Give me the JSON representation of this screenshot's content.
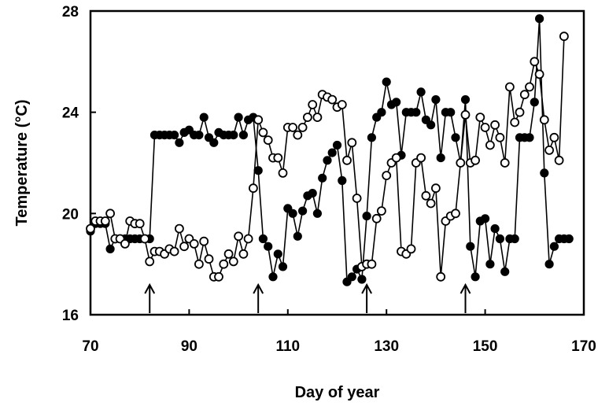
{
  "chart_data": {
    "type": "line",
    "title": "",
    "xlabel": "Day of year",
    "ylabel": "Temperature (°C)",
    "xlim": [
      70,
      170
    ],
    "ylim": [
      16,
      28
    ],
    "x_ticks": [
      70,
      90,
      110,
      130,
      150,
      170
    ],
    "y_ticks": [
      16,
      20,
      24,
      28
    ],
    "grid": false,
    "legend": "none",
    "arrows_at_x": [
      82,
      104,
      126,
      146
    ],
    "series": [
      {
        "marker": "filled",
        "color": "#000000",
        "x": [
          70,
          71,
          72,
          73,
          74,
          75,
          76,
          77,
          78,
          79,
          80,
          81,
          82,
          83,
          84,
          85,
          86,
          87,
          88,
          89,
          90,
          91,
          92,
          93,
          94,
          95,
          96,
          97,
          98,
          99,
          100,
          101,
          102,
          103,
          104,
          105,
          106,
          107,
          108,
          109,
          110,
          111,
          112,
          113,
          114,
          115,
          116,
          117,
          118,
          119,
          120,
          121,
          122,
          123,
          124,
          125,
          126,
          127,
          128,
          129,
          130,
          131,
          132,
          133,
          134,
          135,
          136,
          137,
          138,
          139,
          140,
          141,
          142,
          143,
          144,
          145,
          146,
          147,
          148,
          149,
          150,
          151,
          152,
          153,
          154,
          155,
          156,
          157,
          158,
          159,
          160,
          161,
          162,
          163,
          164,
          165,
          166,
          167
        ],
        "y": [
          19.3,
          19.6,
          19.6,
          19.6,
          18.6,
          19.0,
          19.0,
          19.0,
          19.0,
          19.0,
          19.0,
          19.0,
          19.0,
          23.1,
          23.1,
          23.1,
          23.1,
          23.1,
          22.8,
          23.2,
          23.3,
          23.1,
          23.1,
          23.8,
          23.0,
          22.8,
          23.2,
          23.1,
          23.1,
          23.1,
          23.8,
          23.1,
          23.7,
          23.8,
          21.7,
          19.0,
          18.7,
          17.5,
          18.4,
          17.9,
          20.2,
          20.0,
          19.1,
          20.1,
          20.7,
          20.8,
          20.0,
          21.4,
          22.1,
          22.4,
          22.7,
          21.3,
          17.3,
          17.5,
          17.8,
          17.4,
          19.9,
          23.0,
          23.8,
          24.0,
          25.2,
          24.3,
          24.4,
          22.3,
          24.0,
          24.0,
          24.0,
          24.8,
          23.7,
          23.5,
          24.5,
          22.2,
          24.0,
          24.0,
          23.0,
          22.0,
          24.5,
          18.7,
          17.5,
          19.7,
          19.8,
          18.0,
          19.4,
          19.0,
          17.7,
          19.0,
          19.0,
          23.0,
          23.0,
          23.0,
          24.4,
          27.7,
          21.6,
          18.0,
          18.7,
          19.0,
          19.0,
          19.0
        ]
      },
      {
        "marker": "open",
        "color": "#000000",
        "x": [
          70,
          71,
          72,
          73,
          74,
          75,
          76,
          77,
          78,
          79,
          80,
          81,
          82,
          83,
          84,
          85,
          86,
          87,
          88,
          89,
          90,
          91,
          92,
          93,
          94,
          95,
          96,
          97,
          98,
          99,
          100,
          101,
          102,
          103,
          104,
          105,
          106,
          107,
          108,
          109,
          110,
          111,
          112,
          113,
          114,
          115,
          116,
          117,
          118,
          119,
          120,
          121,
          122,
          123,
          124,
          125,
          126,
          127,
          128,
          129,
          130,
          131,
          132,
          133,
          134,
          135,
          136,
          137,
          138,
          139,
          140,
          141,
          142,
          143,
          144,
          145,
          146,
          147,
          148,
          149,
          150,
          151,
          152,
          153,
          154,
          155,
          156,
          157,
          158,
          159,
          160,
          161,
          162,
          163,
          164,
          165,
          166
        ],
        "y": [
          19.4,
          19.7,
          19.7,
          19.7,
          20.0,
          19.0,
          19.0,
          18.8,
          19.7,
          19.6,
          19.6,
          19.0,
          18.1,
          18.5,
          18.5,
          18.4,
          18.6,
          18.5,
          19.4,
          18.7,
          19.0,
          18.8,
          18.0,
          18.9,
          18.2,
          17.5,
          17.5,
          18.0,
          18.4,
          18.1,
          19.1,
          18.4,
          19.0,
          21.0,
          23.7,
          23.2,
          22.9,
          22.2,
          22.2,
          21.6,
          23.4,
          23.4,
          23.1,
          23.4,
          23.8,
          24.3,
          23.8,
          24.7,
          24.6,
          24.5,
          24.2,
          24.3,
          22.1,
          22.8,
          20.6,
          17.9,
          18.0,
          18.0,
          19.8,
          20.1,
          21.5,
          22.0,
          22.2,
          18.5,
          18.4,
          18.6,
          22.0,
          22.2,
          20.7,
          20.4,
          21.0,
          17.5,
          19.7,
          19.9,
          20.0,
          22.0,
          23.9,
          22.0,
          22.1,
          23.8,
          23.4,
          22.7,
          23.5,
          23.0,
          22.0,
          25.0,
          23.6,
          24.0,
          24.7,
          25.0,
          26.0,
          25.5,
          23.7,
          22.5,
          23.0,
          22.1,
          27.0
        ]
      }
    ]
  }
}
